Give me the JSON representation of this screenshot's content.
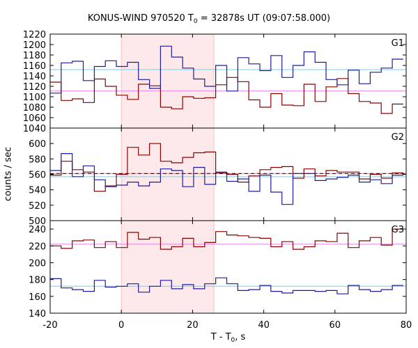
{
  "title": {
    "main": "KONUS-WIND 970520 T",
    "sub": "0",
    "rest": " = 32878s UT (09:07:58.000)"
  },
  "xlabel": {
    "main": "T - T",
    "sub": "0",
    "rest": ", s"
  },
  "ylabel": "counts / sec",
  "colors": {
    "series1": "#8b0000",
    "series2": "#1c1ca0",
    "fit1": "#e87ce8",
    "fit2": "#6fd4f0",
    "interval_fill": "#fde9ea",
    "interval_line": "#f3c0c4",
    "axis": "#000000"
  },
  "chart_data": {
    "type": "line",
    "x": {
      "range": [
        -20,
        80
      ],
      "ticks": [
        -20,
        0,
        20,
        40,
        60,
        80
      ]
    },
    "bin_edges": [
      -20,
      -16.9,
      -13.8,
      -10.7,
      -7.6,
      -4.5,
      -1.4,
      1.7,
      4.8,
      7.9,
      11,
      14.1,
      17.2,
      20.3,
      23.4,
      26.5,
      29.6,
      32.7,
      35.8,
      38.9,
      42,
      45.1,
      48.2,
      51.3,
      54.4,
      57.5,
      60.6,
      63.7,
      66.8,
      69.9,
      73,
      76.1,
      79.2
    ],
    "highlight_interval": [
      0,
      26
    ],
    "panels": [
      {
        "label": "G1",
        "ylim": [
          1040,
          1220
        ],
        "yticks": [
          1040,
          1060,
          1080,
          1100,
          1120,
          1140,
          1160,
          1180,
          1200,
          1220
        ],
        "series": [
          {
            "values": [
              1128,
              1093,
              1096,
              1089,
              1134,
              1120,
              1103,
              1095,
              1124,
              1121,
              1080,
              1077,
              1100,
              1097,
              1098,
              1123,
              1137,
              1129,
              1094,
              1080,
              1106,
              1084,
              1083,
              1124,
              1091,
              1119,
              1135,
              1106,
              1091,
              1088,
              1068,
              1086
            ]
          },
          {
            "values": [
              1107,
              1165,
              1168,
              1131,
              1158,
              1169,
              1158,
              1166,
              1133,
              1116,
              1197,
              1176,
              1155,
              1134,
              1120,
              1160,
              1111,
              1175,
              1163,
              1150,
              1179,
              1137,
              1160,
              1186,
              1166,
              1133,
              1123,
              1151,
              1125,
              1147,
              1155,
              1172
            ]
          }
        ],
        "fits": [
          {
            "series": 1,
            "value": 1111
          },
          {
            "series": 2,
            "value": 1152
          }
        ]
      },
      {
        "label": "G2",
        "ylim": [
          500,
          620
        ],
        "yticks": [
          500,
          520,
          540,
          560,
          580,
          600
        ],
        "series": [
          {
            "values": [
              559,
              577,
              566,
              563,
              538,
              545,
              560,
              595,
              585,
              600,
              577,
              575,
              582,
              588,
              589,
              562,
              560,
              550,
              558,
              566,
              569,
              570,
              555,
              567,
              558,
              565,
              563,
              563,
              554,
              560,
              555,
              562
            ]
          },
          {
            "values": [
              565,
              587,
              557,
              571,
              553,
              544,
              546,
              550,
              545,
              550,
              567,
              565,
              544,
              569,
              547,
              563,
              551,
              554,
              538,
              559,
              537,
              521,
              561,
              561,
              552,
              554,
              556,
              559,
              550,
              553,
              548,
              559
            ]
          }
        ],
        "fits": [
          {
            "series": 1,
            "value": 561,
            "dashed": true
          },
          {
            "series": 2,
            "value": 557
          }
        ]
      },
      {
        "label": "G3",
        "ylim": [
          140,
          250
        ],
        "yticks": [
          140,
          160,
          180,
          200,
          220,
          240
        ],
        "series": [
          {
            "values": [
              220,
              217,
              226,
              227,
              218,
              225,
              218,
              236,
              228,
              230,
              216,
              219,
              229,
              219,
              224,
              237,
              233,
              232,
              230,
              229,
              219,
              225,
              216,
              219,
              226,
              225,
              235,
              218,
              226,
              230,
              221,
              240
            ]
          },
          {
            "values": [
              181,
              170,
              168,
              166,
              179,
              171,
              172,
              175,
              165,
              172,
              179,
              169,
              174,
              169,
              175,
              182,
              175,
              167,
              168,
              173,
              166,
              164,
              167,
              167,
              166,
              167,
              163,
              173,
              168,
              166,
              168,
              173
            ]
          }
        ],
        "fits": [
          {
            "series": 1,
            "value": 222
          },
          {
            "series": 2,
            "value": 172
          }
        ]
      }
    ]
  }
}
